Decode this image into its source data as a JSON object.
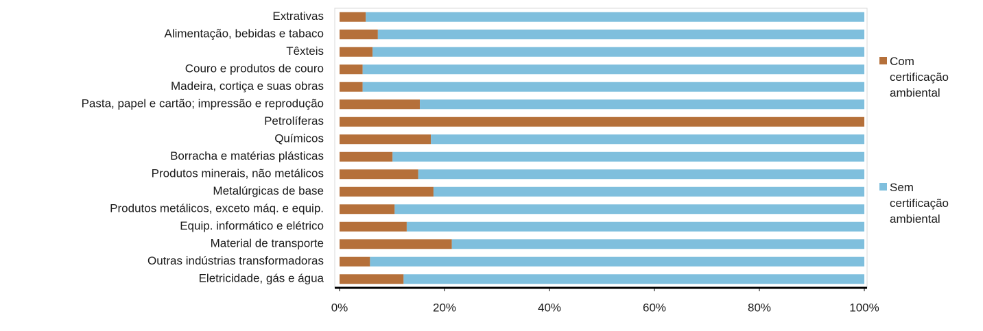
{
  "chart_data": {
    "type": "stacked_barh",
    "categories": [
      "Extrativas",
      "Alimentação, bebidas e tabaco",
      "Têxteis",
      "Couro e produtos de couro",
      "Madeira, cortiça e suas obras",
      "Pasta, papel e cartão; impressão e reprodução",
      "Petrolíferas",
      "Químicos",
      "Borracha e matérias plásticas",
      "Produtos minerais, não metálicos",
      "Metalúrgicas de base",
      "Produtos metálicos, exceto máq. e equip.",
      "Equip. informático e elétrico",
      "Material de transporte",
      "Outras indústrias transformadoras",
      "Eletricidade, gás e água"
    ],
    "series": [
      {
        "name": "Com certificação ambiental",
        "color": "#b5703a",
        "values": [
          5.0,
          7.3,
          6.3,
          4.4,
          4.4,
          15.3,
          100,
          17.4,
          10.1,
          15.0,
          17.9,
          10.5,
          12.8,
          21.4,
          5.8,
          12.2
        ]
      },
      {
        "name": "Sem certificação ambiental",
        "color": "#7fbfdd",
        "values": [
          95.0,
          92.7,
          93.7,
          95.6,
          95.6,
          84.7,
          0,
          82.6,
          89.9,
          85.0,
          82.1,
          89.5,
          87.2,
          78.6,
          94.2,
          87.8
        ]
      }
    ],
    "xlim": [
      0,
      100
    ],
    "xticks": [
      {
        "value": 0,
        "label": "0%"
      },
      {
        "value": 20,
        "label": "20%"
      },
      {
        "value": 40,
        "label": "40%"
      },
      {
        "value": 60,
        "label": "60%"
      },
      {
        "value": 80,
        "label": "80%"
      },
      {
        "value": 100,
        "label": "100%"
      }
    ]
  }
}
